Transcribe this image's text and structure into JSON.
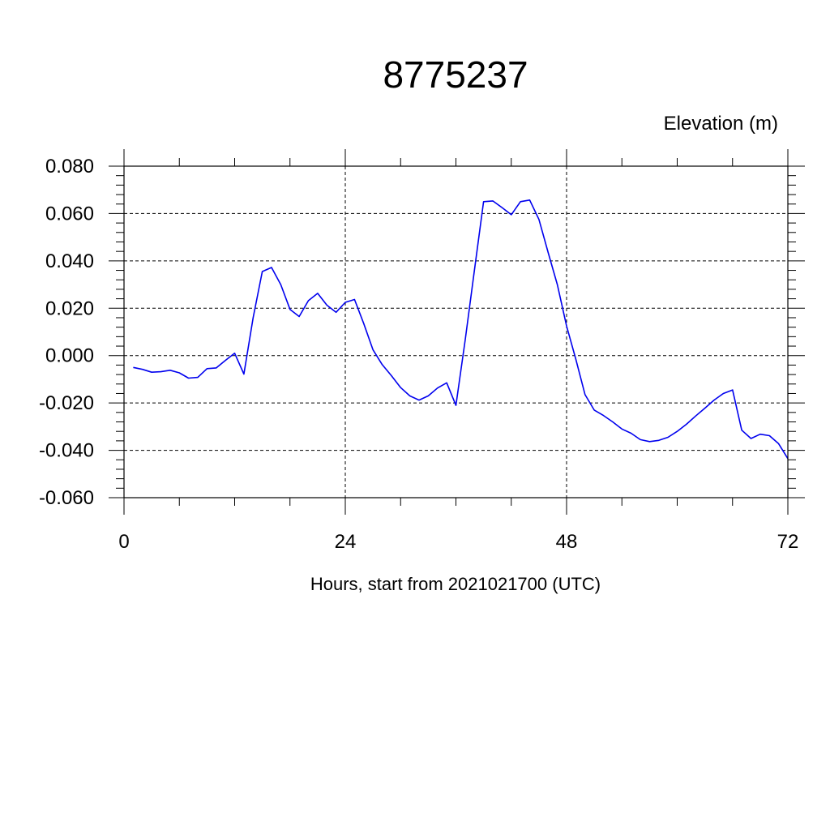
{
  "chart_data": {
    "type": "line",
    "title": "8775237",
    "ylabel": "Elevation (m)",
    "xlabel": "Hours, start from 2021021700 (UTC)",
    "xlim": [
      0,
      72
    ],
    "ylim": [
      -0.06,
      0.08
    ],
    "xticks": [
      0,
      24,
      48,
      72
    ],
    "xtick_labels": [
      "0",
      "24",
      "48",
      "72"
    ],
    "yticks": [
      -0.06,
      -0.04,
      -0.02,
      0.0,
      0.02,
      0.04,
      0.06,
      0.08
    ],
    "ytick_labels": [
      "-0.060",
      "-0.040",
      "-0.020",
      "0.000",
      "0.020",
      "0.040",
      "0.060",
      "0.080"
    ],
    "grid": true,
    "line_color": "#0000ee",
    "series": [
      {
        "x": [
          1,
          2,
          3,
          4,
          5,
          6,
          7,
          8,
          9,
          10,
          11,
          12,
          13,
          14,
          15,
          16,
          17,
          18,
          19,
          20,
          21,
          22,
          23,
          24,
          25,
          26,
          27,
          28,
          29,
          30,
          31,
          32,
          33,
          34,
          35,
          36,
          37,
          38,
          39,
          40,
          41,
          42,
          43,
          44,
          45,
          46,
          47,
          48,
          49,
          50,
          51,
          52,
          53,
          54,
          55,
          56,
          57,
          58,
          59,
          60,
          61,
          62,
          63,
          64,
          65,
          66,
          67,
          68,
          69,
          70,
          71,
          72
        ],
        "values": [
          -0.005,
          -0.0058,
          -0.007,
          -0.0068,
          -0.0062,
          -0.0073,
          -0.0095,
          -0.0092,
          -0.0055,
          -0.0052,
          -0.002,
          0.001,
          -0.0078,
          0.016,
          0.0355,
          0.0372,
          0.03,
          0.0195,
          0.0165,
          0.0232,
          0.0263,
          0.0213,
          0.0183,
          0.0225,
          0.0237,
          0.0135,
          0.0025,
          -0.0038,
          -0.0085,
          -0.0135,
          -0.017,
          -0.0188,
          -0.017,
          -0.0137,
          -0.0115,
          -0.021,
          0.0065,
          0.036,
          0.065,
          0.0653,
          0.0625,
          0.0595,
          0.065,
          0.0657,
          0.0575,
          0.0435,
          0.03,
          0.0125,
          -0.0015,
          -0.0165,
          -0.023,
          -0.0253,
          -0.028,
          -0.031,
          -0.0328,
          -0.0355,
          -0.0363,
          -0.0358,
          -0.0345,
          -0.032,
          -0.029,
          -0.0255,
          -0.0222,
          -0.0188,
          -0.016,
          -0.0145,
          -0.0315,
          -0.035,
          -0.0332,
          -0.0338,
          -0.0372,
          -0.0435
        ]
      }
    ]
  }
}
